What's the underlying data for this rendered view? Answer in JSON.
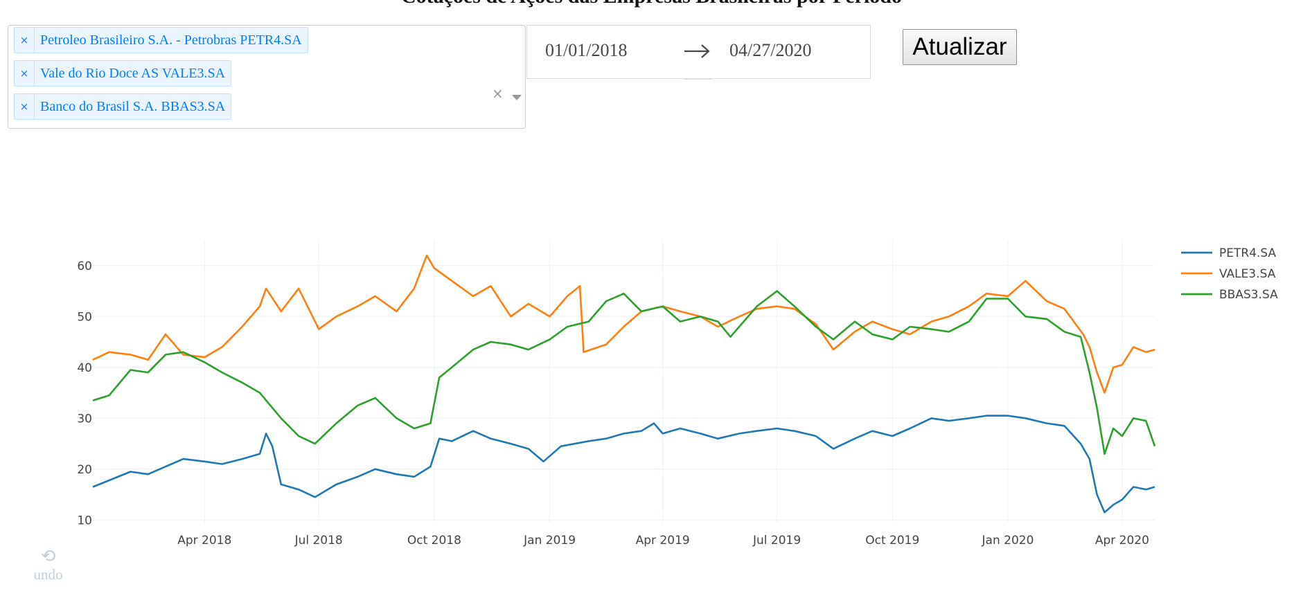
{
  "page_title": "Cotações de Ações das Empresas Brasileiras por Período",
  "selector": {
    "tags": [
      {
        "label": "Petroleo Brasileiro S.A. - Petrobras PETR4.SA"
      },
      {
        "label": "Vale do Rio Doce AS VALE3.SA"
      },
      {
        "label": "Banco do Brasil S.A. BBAS3.SA"
      }
    ],
    "remove_glyph": "×",
    "clear_glyph": "×"
  },
  "date_range": {
    "start": "01/01/2018",
    "end": "04/27/2020"
  },
  "update_button": {
    "label": "Atualizar"
  },
  "undo": {
    "glyph": "⟲",
    "label": "undo"
  },
  "colors": {
    "PETR4.SA": "#1f77b4",
    "VALE3.SA": "#ff7f0e",
    "BBAS3.SA": "#2ca02c"
  },
  "chart_data": {
    "type": "line",
    "title": "",
    "xlabel": "",
    "ylabel": "",
    "x_range": [
      "2018-01-02",
      "2020-04-27"
    ],
    "ylim": [
      9.5,
      65
    ],
    "yticks": [
      10,
      20,
      30,
      40,
      50,
      60
    ],
    "xticks": [
      {
        "date": "2018-04-01",
        "label": "Apr 2018"
      },
      {
        "date": "2018-07-01",
        "label": "Jul 2018"
      },
      {
        "date": "2018-10-01",
        "label": "Oct 2018"
      },
      {
        "date": "2019-01-01",
        "label": "Jan 2019"
      },
      {
        "date": "2019-04-01",
        "label": "Apr 2019"
      },
      {
        "date": "2019-07-01",
        "label": "Jul 2019"
      },
      {
        "date": "2019-10-01",
        "label": "Oct 2019"
      },
      {
        "date": "2020-01-01",
        "label": "Jan 2020"
      },
      {
        "date": "2020-04-01",
        "label": "Apr 2020"
      }
    ],
    "grid": true,
    "legend_position": "top-right",
    "series": [
      {
        "name": "PETR4.SA",
        "color": "#1f77b4",
        "points": [
          [
            "2018-01-02",
            16.5
          ],
          [
            "2018-01-15",
            17.8
          ],
          [
            "2018-02-01",
            19.5
          ],
          [
            "2018-02-15",
            19.0
          ],
          [
            "2018-03-01",
            20.5
          ],
          [
            "2018-03-15",
            22.0
          ],
          [
            "2018-04-01",
            21.5
          ],
          [
            "2018-04-15",
            21.0
          ],
          [
            "2018-05-01",
            22.0
          ],
          [
            "2018-05-15",
            23.0
          ],
          [
            "2018-05-20",
            27.0
          ],
          [
            "2018-05-25",
            24.5
          ],
          [
            "2018-06-01",
            17.0
          ],
          [
            "2018-06-15",
            16.0
          ],
          [
            "2018-06-28",
            14.5
          ],
          [
            "2018-07-15",
            17.0
          ],
          [
            "2018-08-01",
            18.5
          ],
          [
            "2018-08-15",
            20.0
          ],
          [
            "2018-09-01",
            19.0
          ],
          [
            "2018-09-15",
            18.5
          ],
          [
            "2018-09-28",
            20.5
          ],
          [
            "2018-10-05",
            26.0
          ],
          [
            "2018-10-15",
            25.5
          ],
          [
            "2018-11-01",
            27.5
          ],
          [
            "2018-11-15",
            26.0
          ],
          [
            "2018-12-01",
            25.0
          ],
          [
            "2018-12-15",
            24.0
          ],
          [
            "2018-12-27",
            21.5
          ],
          [
            "2019-01-10",
            24.5
          ],
          [
            "2019-02-01",
            25.5
          ],
          [
            "2019-02-15",
            26.0
          ],
          [
            "2019-03-01",
            27.0
          ],
          [
            "2019-03-15",
            27.5
          ],
          [
            "2019-03-25",
            29.0
          ],
          [
            "2019-04-01",
            27.0
          ],
          [
            "2019-04-15",
            28.0
          ],
          [
            "2019-05-01",
            27.0
          ],
          [
            "2019-05-15",
            26.0
          ],
          [
            "2019-06-01",
            27.0
          ],
          [
            "2019-06-15",
            27.5
          ],
          [
            "2019-07-01",
            28.0
          ],
          [
            "2019-07-15",
            27.5
          ],
          [
            "2019-08-01",
            26.5
          ],
          [
            "2019-08-15",
            24.0
          ],
          [
            "2019-09-01",
            26.0
          ],
          [
            "2019-09-15",
            27.5
          ],
          [
            "2019-10-01",
            26.5
          ],
          [
            "2019-10-15",
            28.0
          ],
          [
            "2019-11-01",
            30.0
          ],
          [
            "2019-11-15",
            29.5
          ],
          [
            "2019-12-01",
            30.0
          ],
          [
            "2019-12-15",
            30.5
          ],
          [
            "2020-01-01",
            30.5
          ],
          [
            "2020-01-15",
            30.0
          ],
          [
            "2020-02-01",
            29.0
          ],
          [
            "2020-02-15",
            28.5
          ],
          [
            "2020-02-28",
            25.0
          ],
          [
            "2020-03-06",
            22.0
          ],
          [
            "2020-03-12",
            15.0
          ],
          [
            "2020-03-18",
            11.5
          ],
          [
            "2020-03-25",
            13.0
          ],
          [
            "2020-04-01",
            14.0
          ],
          [
            "2020-04-10",
            16.5
          ],
          [
            "2020-04-20",
            16.0
          ],
          [
            "2020-04-27",
            16.5
          ]
        ]
      },
      {
        "name": "VALE3.SA",
        "color": "#ff7f0e",
        "points": [
          [
            "2018-01-02",
            41.5
          ],
          [
            "2018-01-15",
            43.0
          ],
          [
            "2018-02-01",
            42.5
          ],
          [
            "2018-02-15",
            41.5
          ],
          [
            "2018-03-01",
            46.5
          ],
          [
            "2018-03-15",
            42.5
          ],
          [
            "2018-04-01",
            42.0
          ],
          [
            "2018-04-15",
            44.0
          ],
          [
            "2018-05-01",
            48.0
          ],
          [
            "2018-05-15",
            52.0
          ],
          [
            "2018-05-20",
            55.5
          ],
          [
            "2018-06-01",
            51.0
          ],
          [
            "2018-06-15",
            55.5
          ],
          [
            "2018-07-01",
            47.5
          ],
          [
            "2018-07-15",
            50.0
          ],
          [
            "2018-08-01",
            52.0
          ],
          [
            "2018-08-15",
            54.0
          ],
          [
            "2018-09-01",
            51.0
          ],
          [
            "2018-09-15",
            55.5
          ],
          [
            "2018-09-25",
            62.0
          ],
          [
            "2018-10-01",
            59.5
          ],
          [
            "2018-10-15",
            57.0
          ],
          [
            "2018-11-01",
            54.0
          ],
          [
            "2018-11-15",
            56.0
          ],
          [
            "2018-12-01",
            50.0
          ],
          [
            "2018-12-15",
            52.5
          ],
          [
            "2019-01-01",
            50.0
          ],
          [
            "2019-01-15",
            54.0
          ],
          [
            "2019-01-25",
            56.0
          ],
          [
            "2019-01-28",
            43.0
          ],
          [
            "2019-02-15",
            44.5
          ],
          [
            "2019-03-01",
            48.0
          ],
          [
            "2019-03-15",
            51.0
          ],
          [
            "2019-04-01",
            52.0
          ],
          [
            "2019-04-15",
            51.0
          ],
          [
            "2019-05-01",
            50.0
          ],
          [
            "2019-05-15",
            48.0
          ],
          [
            "2019-06-01",
            50.0
          ],
          [
            "2019-06-15",
            51.5
          ],
          [
            "2019-07-01",
            52.0
          ],
          [
            "2019-07-15",
            51.5
          ],
          [
            "2019-08-01",
            48.5
          ],
          [
            "2019-08-15",
            43.5
          ],
          [
            "2019-09-01",
            47.0
          ],
          [
            "2019-09-15",
            49.0
          ],
          [
            "2019-10-01",
            47.5
          ],
          [
            "2019-10-15",
            46.5
          ],
          [
            "2019-11-01",
            49.0
          ],
          [
            "2019-11-15",
            50.0
          ],
          [
            "2019-12-01",
            52.0
          ],
          [
            "2019-12-15",
            54.5
          ],
          [
            "2020-01-01",
            54.0
          ],
          [
            "2020-01-15",
            57.0
          ],
          [
            "2020-02-01",
            53.0
          ],
          [
            "2020-02-15",
            51.5
          ],
          [
            "2020-03-01",
            46.5
          ],
          [
            "2020-03-06",
            44.0
          ],
          [
            "2020-03-12",
            39.0
          ],
          [
            "2020-03-18",
            35.0
          ],
          [
            "2020-03-25",
            40.0
          ],
          [
            "2020-04-01",
            40.5
          ],
          [
            "2020-04-10",
            44.0
          ],
          [
            "2020-04-20",
            43.0
          ],
          [
            "2020-04-27",
            43.5
          ]
        ]
      },
      {
        "name": "BBAS3.SA",
        "color": "#2ca02c",
        "points": [
          [
            "2018-01-02",
            33.5
          ],
          [
            "2018-01-15",
            34.5
          ],
          [
            "2018-02-01",
            39.5
          ],
          [
            "2018-02-15",
            39.0
          ],
          [
            "2018-03-01",
            42.5
          ],
          [
            "2018-03-15",
            43.0
          ],
          [
            "2018-04-01",
            41.0
          ],
          [
            "2018-04-15",
            39.0
          ],
          [
            "2018-05-01",
            37.0
          ],
          [
            "2018-05-15",
            35.0
          ],
          [
            "2018-06-01",
            30.0
          ],
          [
            "2018-06-15",
            26.5
          ],
          [
            "2018-06-28",
            25.0
          ],
          [
            "2018-07-15",
            29.0
          ],
          [
            "2018-08-01",
            32.5
          ],
          [
            "2018-08-15",
            34.0
          ],
          [
            "2018-09-01",
            30.0
          ],
          [
            "2018-09-15",
            28.0
          ],
          [
            "2018-09-28",
            29.0
          ],
          [
            "2018-10-05",
            38.0
          ],
          [
            "2018-10-15",
            40.0
          ],
          [
            "2018-11-01",
            43.5
          ],
          [
            "2018-11-15",
            45.0
          ],
          [
            "2018-12-01",
            44.5
          ],
          [
            "2018-12-15",
            43.5
          ],
          [
            "2019-01-01",
            45.5
          ],
          [
            "2019-01-15",
            48.0
          ],
          [
            "2019-02-01",
            49.0
          ],
          [
            "2019-02-15",
            53.0
          ],
          [
            "2019-03-01",
            54.5
          ],
          [
            "2019-03-15",
            51.0
          ],
          [
            "2019-04-01",
            52.0
          ],
          [
            "2019-04-15",
            49.0
          ],
          [
            "2019-05-01",
            50.0
          ],
          [
            "2019-05-15",
            49.0
          ],
          [
            "2019-05-25",
            46.0
          ],
          [
            "2019-06-15",
            52.0
          ],
          [
            "2019-07-01",
            55.0
          ],
          [
            "2019-07-15",
            52.0
          ],
          [
            "2019-08-01",
            48.0
          ],
          [
            "2019-08-15",
            45.5
          ],
          [
            "2019-09-01",
            49.0
          ],
          [
            "2019-09-15",
            46.5
          ],
          [
            "2019-10-01",
            45.5
          ],
          [
            "2019-10-15",
            48.0
          ],
          [
            "2019-11-01",
            47.5
          ],
          [
            "2019-11-15",
            47.0
          ],
          [
            "2019-12-01",
            49.0
          ],
          [
            "2019-12-15",
            53.5
          ],
          [
            "2020-01-01",
            53.5
          ],
          [
            "2020-01-15",
            50.0
          ],
          [
            "2020-02-01",
            49.5
          ],
          [
            "2020-02-15",
            47.0
          ],
          [
            "2020-02-28",
            46.0
          ],
          [
            "2020-03-06",
            39.0
          ],
          [
            "2020-03-12",
            32.0
          ],
          [
            "2020-03-18",
            23.0
          ],
          [
            "2020-03-25",
            28.0
          ],
          [
            "2020-04-01",
            26.5
          ],
          [
            "2020-04-10",
            30.0
          ],
          [
            "2020-04-20",
            29.5
          ],
          [
            "2020-04-27",
            24.5
          ]
        ]
      }
    ]
  }
}
